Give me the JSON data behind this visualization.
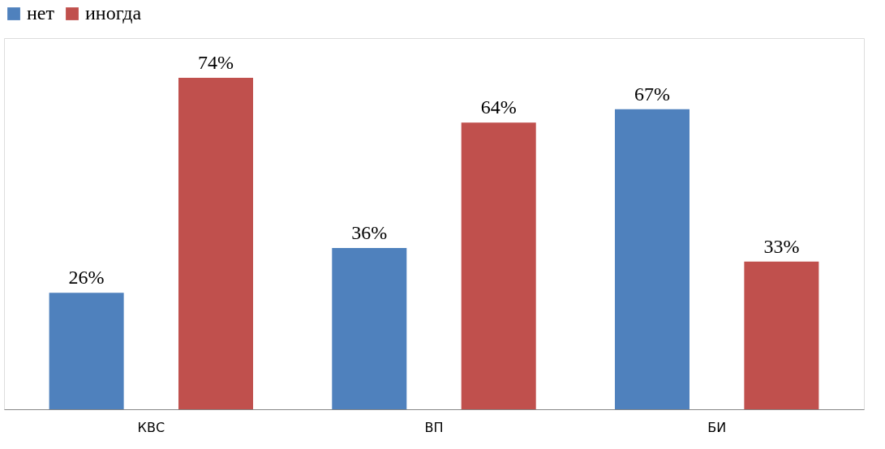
{
  "chart_data": {
    "type": "bar",
    "categories": [
      "КВС",
      "ВП",
      "БИ"
    ],
    "series": [
      {
        "name": "нет",
        "color": "#4f81bd",
        "values": [
          26,
          36,
          67
        ],
        "value_labels": [
          "26%",
          "36%",
          "67%"
        ]
      },
      {
        "name": "иногда",
        "color": "#c0504d",
        "values": [
          74,
          64,
          33
        ],
        "value_labels": [
          "74%",
          "64%",
          "33%"
        ]
      }
    ],
    "legend": "top",
    "grid": false
  }
}
